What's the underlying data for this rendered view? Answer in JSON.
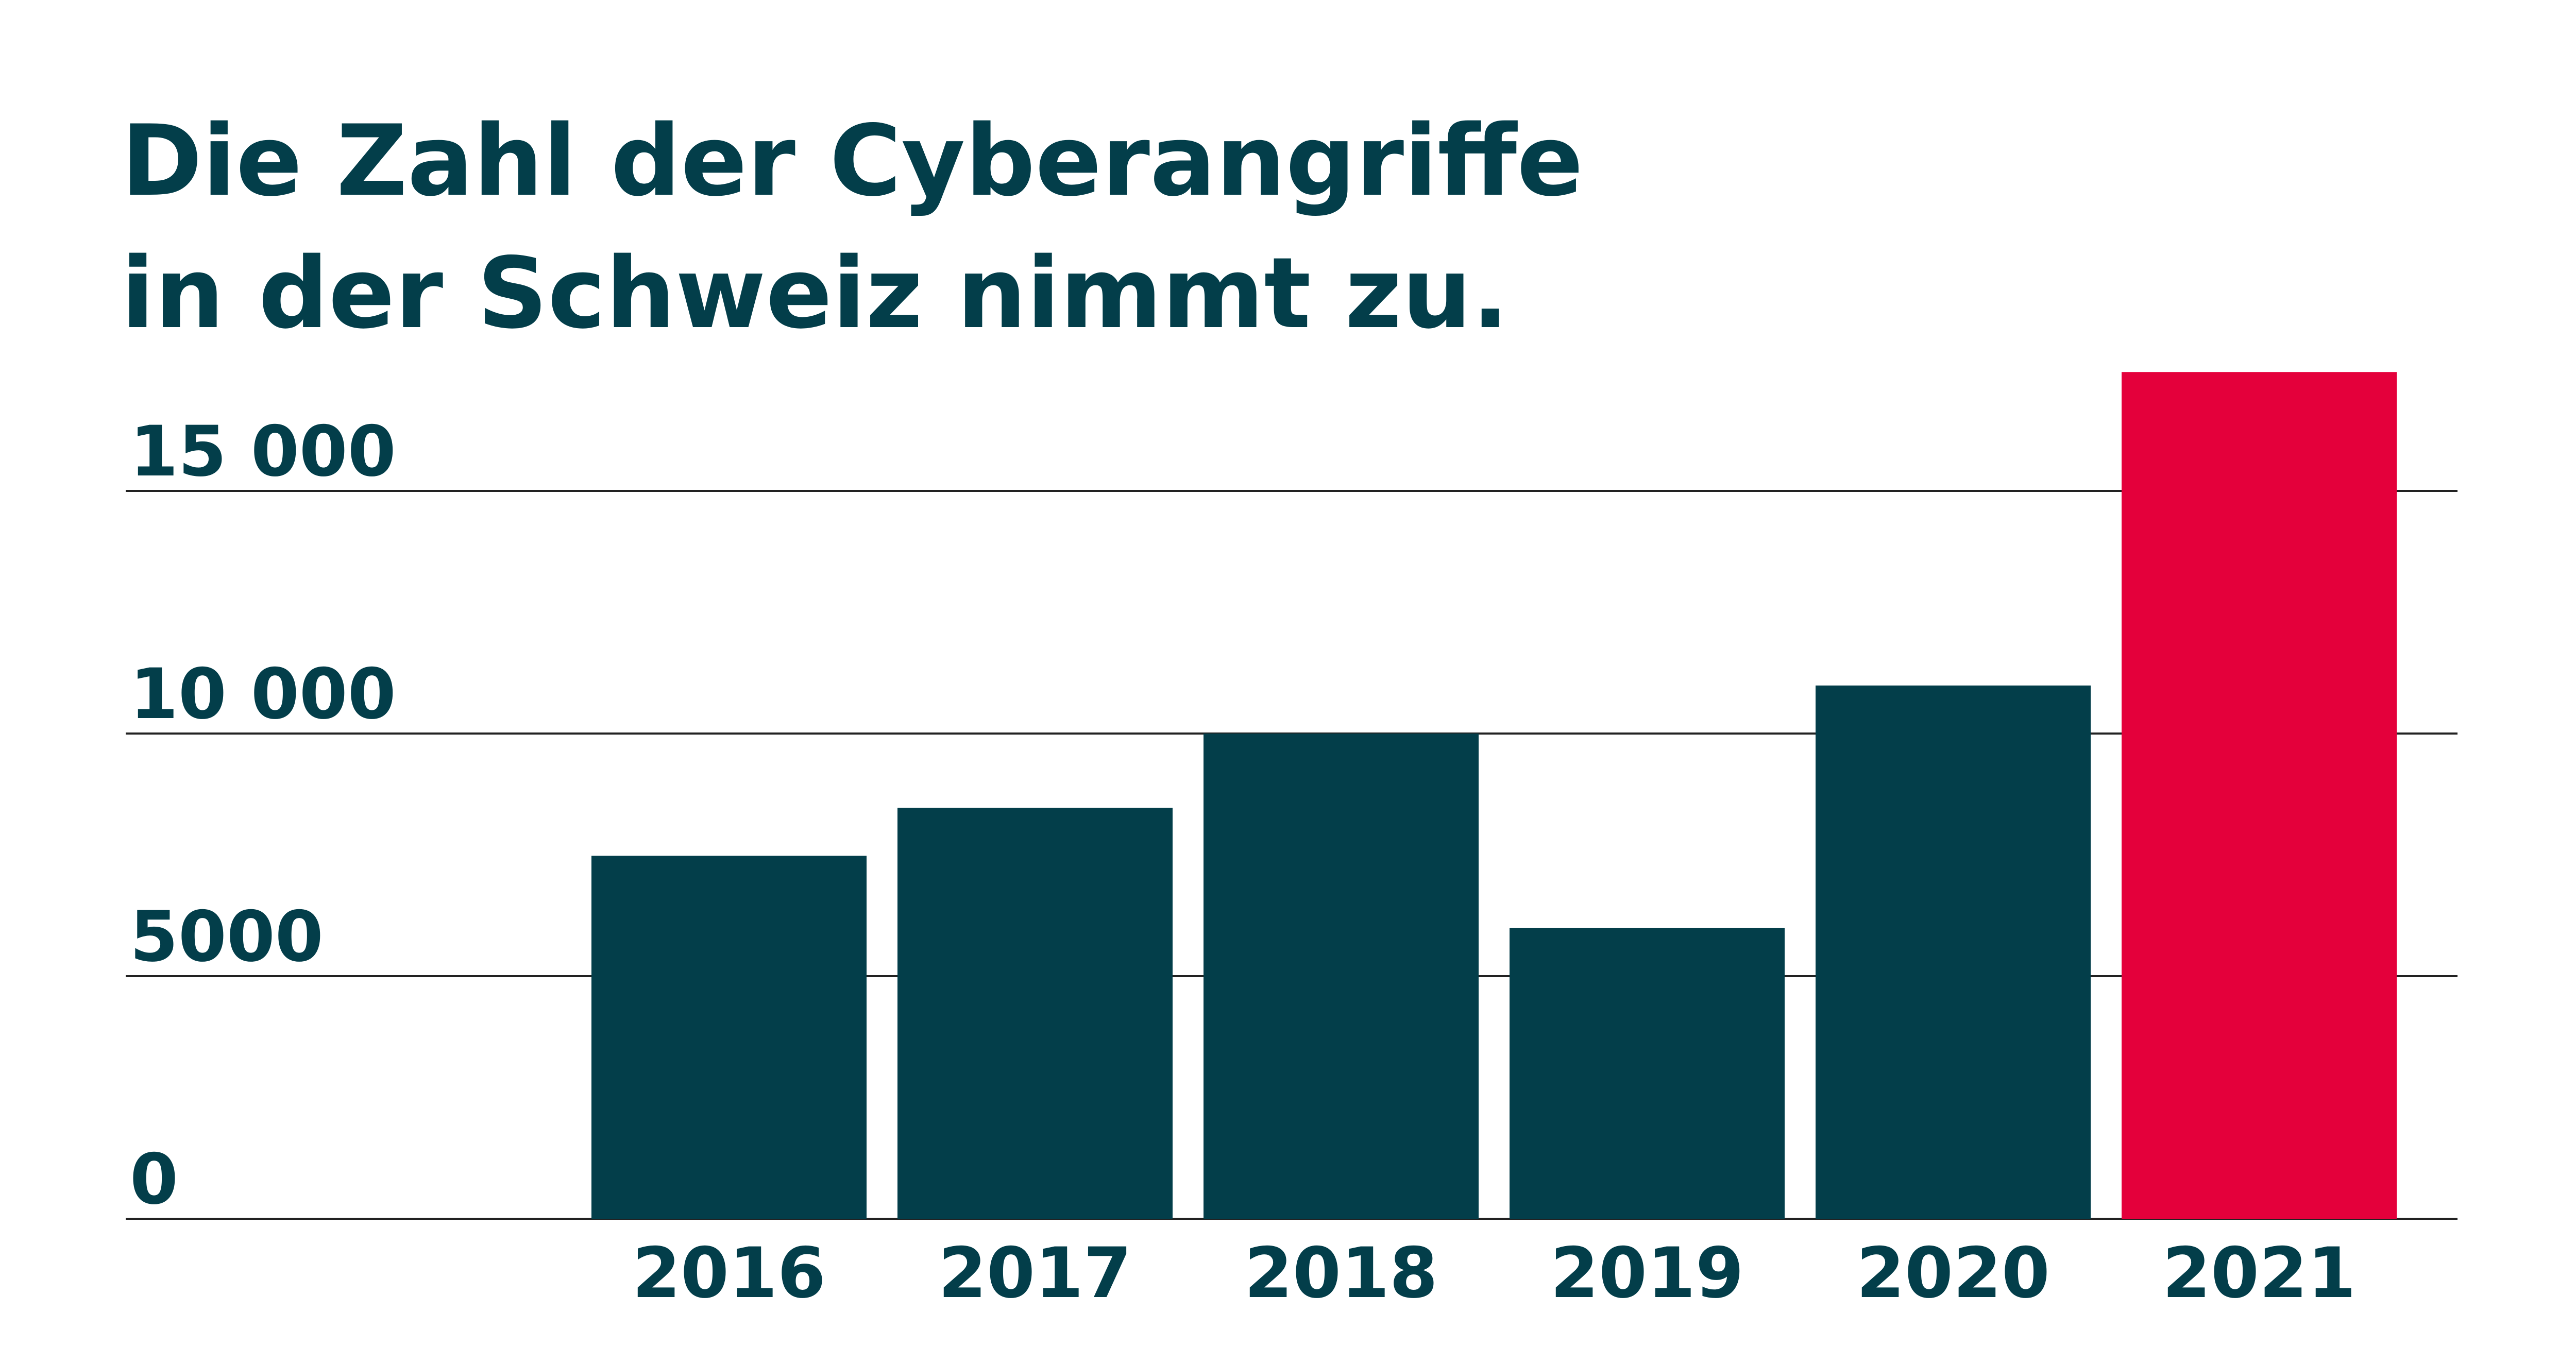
{
  "chart_data": {
    "type": "bar",
    "title": [
      "Die Zahl der Cyberangriffe",
      "in der Schweiz nimmt zu."
    ],
    "categories": [
      "2016",
      "2017",
      "2018",
      "2019",
      "2020",
      "2021"
    ],
    "values": [
      7480,
      8470,
      10000,
      5990,
      10990,
      17450
    ],
    "colors": [
      "#033e4a",
      "#033e4a",
      "#033e4a",
      "#033e4a",
      "#033e4a",
      "#e4003b"
    ],
    "yticks": [
      0,
      5000,
      10000,
      15000
    ],
    "ytick_labels": [
      "0",
      "5000",
      "10 000",
      "15 000"
    ],
    "ylim": [
      0,
      17500
    ],
    "xlabel": "",
    "ylabel": "",
    "grid": true
  }
}
